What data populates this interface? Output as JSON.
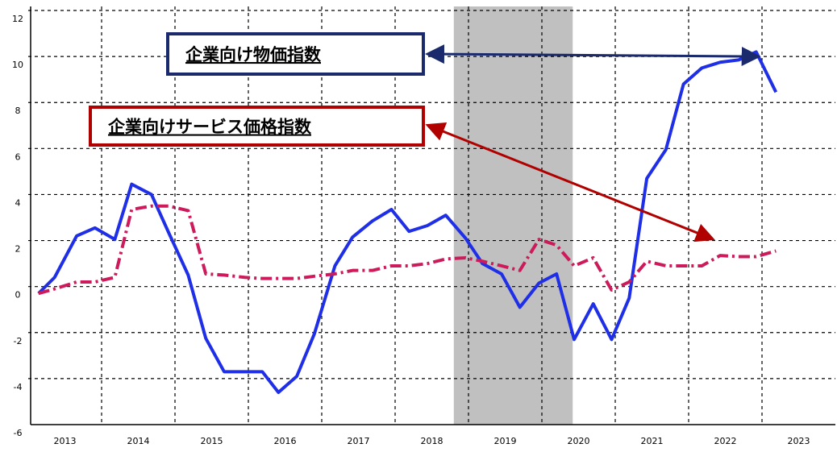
{
  "chart_data": {
    "type": "line",
    "xlim": [
      2013,
      2024
    ],
    "xticks": [
      {
        "value": 2013,
        "label": "2013"
      },
      {
        "value": 2014,
        "label": "2014"
      },
      {
        "value": 2015,
        "label": "2015"
      },
      {
        "value": 2016,
        "label": "2016"
      },
      {
        "value": 2017,
        "label": "2017"
      },
      {
        "value": 2018,
        "label": "2018"
      },
      {
        "value": 2019,
        "label": "2019"
      },
      {
        "value": 2020,
        "label": "2020"
      },
      {
        "value": 2021,
        "label": "2021"
      },
      {
        "value": 2022,
        "label": "2022"
      },
      {
        "value": 2023,
        "label": "2023"
      }
    ],
    "ylim": [
      -6,
      12
    ],
    "yticks": [
      -6,
      -4,
      -2,
      0,
      2,
      4,
      6,
      8,
      10,
      12
    ],
    "grid": true,
    "shaded": {
      "x": [
        2018.8,
        2020.42
      ],
      "color": "#c0c0c0"
    },
    "x": [
      2013.14,
      2013.36,
      2013.66,
      2013.91,
      2014.18,
      2014.41,
      2014.68,
      2014.92,
      2015.18,
      2015.42,
      2015.67,
      2015.95,
      2016.19,
      2016.41,
      2016.66,
      2016.9,
      2017.18,
      2017.42,
      2017.69,
      2017.95,
      2018.19,
      2018.44,
      2018.69,
      2018.96,
      2019.19,
      2019.45,
      2019.7,
      2019.96,
      2020.2,
      2020.44,
      2020.7,
      2020.95,
      2021.19,
      2021.43,
      2021.69,
      2021.93,
      2022.18,
      2022.43,
      2022.68,
      2022.92,
      2023.19
    ],
    "series": [
      {
        "name": "企業向け物価指数",
        "color": "#1f2fe8",
        "dash": "solid",
        "values": [
          -0.3,
          0.4,
          2.2,
          2.55,
          2.05,
          4.45,
          4.0,
          2.3,
          0.5,
          -2.25,
          -3.7,
          -3.7,
          -3.7,
          -4.6,
          -3.9,
          -2.05,
          0.9,
          2.15,
          2.85,
          3.35,
          2.4,
          2.65,
          3.1,
          2.1,
          1.0,
          0.55,
          -0.9,
          0.15,
          0.55,
          -2.3,
          -0.75,
          -2.3,
          -0.5,
          4.7,
          5.95,
          8.8,
          9.5,
          9.75,
          9.85,
          10.2,
          8.45
        ]
      },
      {
        "name": "企業向けサービス価格指数",
        "color": "#cc1a5a",
        "dash": "dashdot",
        "values": [
          -0.3,
          -0.1,
          0.2,
          0.2,
          0.4,
          3.35,
          3.5,
          3.5,
          3.3,
          0.55,
          0.5,
          0.4,
          0.35,
          0.35,
          0.35,
          0.45,
          0.55,
          0.7,
          0.7,
          0.9,
          0.9,
          1.0,
          1.2,
          1.25,
          1.1,
          0.9,
          0.7,
          2.05,
          1.8,
          0.9,
          1.25,
          -0.15,
          0.2,
          1.1,
          0.9,
          0.9,
          0.9,
          1.35,
          1.3,
          1.3,
          1.55
        ]
      }
    ],
    "annotations": [
      {
        "text": "企業向け物価指数",
        "color": "#1a2a6c",
        "text_color": "#1a2a6c",
        "arrow_to": [
          2022.92,
          10
        ]
      },
      {
        "text": "企業向けサービス価格指数",
        "color": "#b00000",
        "text_color": "#e00000",
        "arrow_to": [
          2022.3,
          2.1
        ]
      }
    ]
  }
}
